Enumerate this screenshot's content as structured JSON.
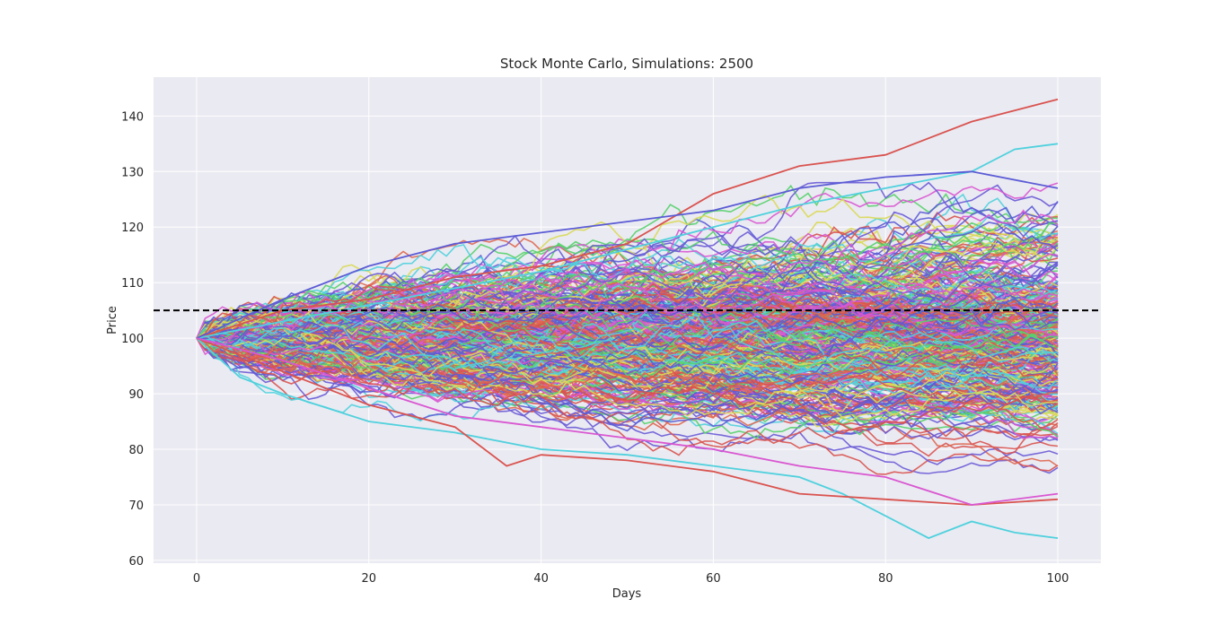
{
  "chart_data": {
    "type": "line",
    "title": "Stock Monte Carlo, Simulations: 2500",
    "xlabel": "Days",
    "ylabel": "Price",
    "xlim": [
      -5,
      105
    ],
    "ylim": [
      59.5,
      147
    ],
    "xticks": [
      0,
      20,
      40,
      60,
      80,
      100
    ],
    "yticks": [
      60,
      70,
      80,
      90,
      100,
      110,
      120,
      130,
      140
    ],
    "grid": true,
    "legend": "none",
    "simulations": 2500,
    "start_price": 100,
    "days": 100,
    "reference_line": {
      "y": 105,
      "style": "dashed",
      "color": "#000000"
    },
    "palette": [
      "#d9534f",
      "#5b5bd6",
      "#4fd1dd",
      "#d957d1",
      "#57d16b",
      "#d9d957",
      "#e0674f",
      "#6a5bd6"
    ],
    "highlighted_paths": [
      {
        "color": "#d9534f",
        "points": [
          [
            0,
            100
          ],
          [
            10,
            105
          ],
          [
            20,
            107
          ],
          [
            30,
            111
          ],
          [
            40,
            113
          ],
          [
            50,
            117
          ],
          [
            60,
            126
          ],
          [
            70,
            131
          ],
          [
            80,
            133
          ],
          [
            90,
            139
          ],
          [
            100,
            143
          ]
        ]
      },
      {
        "color": "#4fd1dd",
        "points": [
          [
            0,
            100
          ],
          [
            10,
            103
          ],
          [
            20,
            106
          ],
          [
            30,
            109
          ],
          [
            40,
            112
          ],
          [
            50,
            116
          ],
          [
            60,
            120
          ],
          [
            70,
            124
          ],
          [
            80,
            127
          ],
          [
            90,
            130
          ],
          [
            95,
            134
          ],
          [
            100,
            135
          ]
        ]
      },
      {
        "color": "#5b5bd6",
        "points": [
          [
            0,
            100
          ],
          [
            10,
            107
          ],
          [
            20,
            113
          ],
          [
            30,
            117
          ],
          [
            40,
            119
          ],
          [
            50,
            121
          ],
          [
            60,
            123
          ],
          [
            70,
            127
          ],
          [
            80,
            129
          ],
          [
            90,
            130
          ],
          [
            100,
            127
          ]
        ]
      },
      {
        "color": "#4fd1dd",
        "points": [
          [
            0,
            100
          ],
          [
            5,
            93
          ],
          [
            10,
            90
          ],
          [
            20,
            85
          ],
          [
            30,
            83
          ],
          [
            40,
            80
          ],
          [
            50,
            79
          ],
          [
            60,
            77
          ],
          [
            70,
            75
          ],
          [
            75,
            72
          ],
          [
            80,
            68
          ],
          [
            85,
            64
          ],
          [
            90,
            67
          ],
          [
            95,
            65
          ],
          [
            100,
            64
          ]
        ]
      },
      {
        "color": "#d9534f",
        "points": [
          [
            0,
            100
          ],
          [
            10,
            94
          ],
          [
            20,
            88
          ],
          [
            30,
            84
          ],
          [
            36,
            77
          ],
          [
            40,
            79
          ],
          [
            50,
            78
          ],
          [
            60,
            76
          ],
          [
            70,
            72
          ],
          [
            80,
            71
          ],
          [
            90,
            70
          ],
          [
            100,
            71
          ]
        ]
      },
      {
        "color": "#d957d1",
        "points": [
          [
            0,
            100
          ],
          [
            10,
            96
          ],
          [
            20,
            91
          ],
          [
            30,
            86
          ],
          [
            40,
            84
          ],
          [
            50,
            82
          ],
          [
            60,
            80
          ],
          [
            70,
            77
          ],
          [
            80,
            75
          ],
          [
            90,
            70
          ],
          [
            100,
            72
          ]
        ]
      }
    ]
  }
}
